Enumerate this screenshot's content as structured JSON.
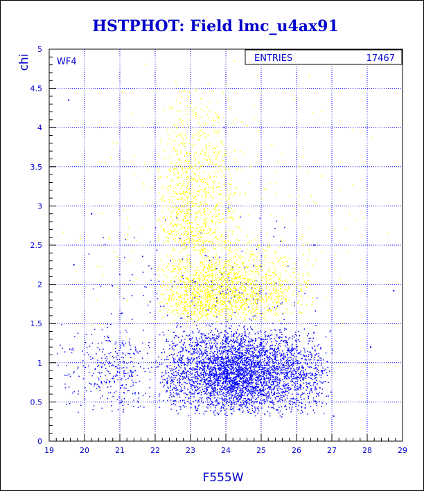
{
  "chart_data": {
    "type": "scatter",
    "title": "HSTPHOT: Field lmc_u4ax91",
    "xlabel": "F555W",
    "ylabel": "chi",
    "xlim": [
      19,
      29
    ],
    "ylim": [
      0,
      5
    ],
    "x_ticks": [
      "19",
      "20",
      "21",
      "22",
      "23",
      "24",
      "25",
      "26",
      "27",
      "28",
      "29"
    ],
    "y_ticks": [
      "0",
      "0.5",
      "1",
      "1.5",
      "2",
      "2.5",
      "3",
      "3.5",
      "4",
      "4.5",
      "5"
    ],
    "grid": true,
    "panel_label": "WF4",
    "stats": {
      "label": "ENTRIES",
      "value": "17467"
    },
    "series": [
      {
        "color": "#ffff00",
        "clusters": [
          {
            "x_range": [
              22.0,
              26.5
            ],
            "y_range": [
              1.5,
              2.6
            ],
            "x_peak": 23.4,
            "y_peak": 1.8,
            "count": 1500
          },
          {
            "x_range": [
              22.0,
              24.5
            ],
            "y_range": [
              2.4,
              4.6
            ],
            "x_peak": 23.0,
            "y_peak": 2.6,
            "count": 800
          },
          {
            "x_range": [
              19.2,
              28.9
            ],
            "y_range": [
              1.4,
              5.0
            ],
            "x_peak": 24.0,
            "y_peak": 2.0,
            "count": 250
          }
        ]
      },
      {
        "color": "#0000ff",
        "clusters": [
          {
            "x_range": [
              22.0,
              27.1
            ],
            "y_range": [
              0.3,
              1.5
            ],
            "x_peak": 24.3,
            "y_peak": 0.85,
            "count": 3800
          },
          {
            "x_range": [
              19.2,
              22.0
            ],
            "y_range": [
              0.3,
              1.5
            ],
            "x_peak": 21.0,
            "y_peak": 0.9,
            "count": 320
          },
          {
            "x_range": [
              19.3,
              27.0
            ],
            "y_range": [
              1.4,
              3.0
            ],
            "x_peak": 23.5,
            "y_peak": 1.6,
            "count": 160
          }
        ]
      }
    ],
    "outliers": [
      {
        "x": 19.55,
        "y": 4.35,
        "color": "#0000ff"
      },
      {
        "x": 23.95,
        "y": 4.0,
        "color": "#0000ff"
      },
      {
        "x": 20.2,
        "y": 2.9,
        "color": "#0000ff"
      },
      {
        "x": 19.7,
        "y": 2.25,
        "color": "#0000ff"
      },
      {
        "x": 26.5,
        "y": 2.5,
        "color": "#0000ff"
      },
      {
        "x": 28.75,
        "y": 1.92,
        "color": "#0000ff"
      },
      {
        "x": 27.05,
        "y": 0.32,
        "color": "#0000ff"
      },
      {
        "x": 28.1,
        "y": 1.2,
        "color": "#0000ff"
      }
    ]
  }
}
